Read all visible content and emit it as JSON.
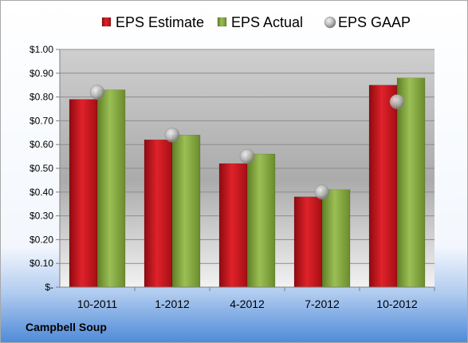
{
  "company_label": "Campbell Soup",
  "chart_data": {
    "type": "bar",
    "categories": [
      "10-2011",
      "1-2012",
      "4-2012",
      "7-2012",
      "10-2012"
    ],
    "series": [
      {
        "name": "EPS Estimate",
        "kind": "bar",
        "color": "#c8141c",
        "values": [
          0.79,
          0.62,
          0.52,
          0.38,
          0.85
        ]
      },
      {
        "name": "EPS Actual",
        "kind": "bar",
        "color": "#7ea23a",
        "values": [
          0.83,
          0.64,
          0.56,
          0.41,
          0.88
        ]
      },
      {
        "name": "EPS GAAP",
        "kind": "marker",
        "color": "#a9a9a9",
        "values": [
          0.82,
          0.64,
          0.55,
          0.4,
          0.78
        ]
      }
    ],
    "ylim": [
      0,
      1.0
    ],
    "yticks": [
      0,
      0.1,
      0.2,
      0.3,
      0.4,
      0.5,
      0.6,
      0.7,
      0.8,
      0.9,
      1.0
    ],
    "ytick_labels": [
      "$-",
      "$0.10",
      "$0.20",
      "$0.30",
      "$0.40",
      "$0.50",
      "$0.60",
      "$0.70",
      "$0.80",
      "$0.90",
      "$1.00"
    ],
    "grid": true,
    "legend_position": "top"
  }
}
